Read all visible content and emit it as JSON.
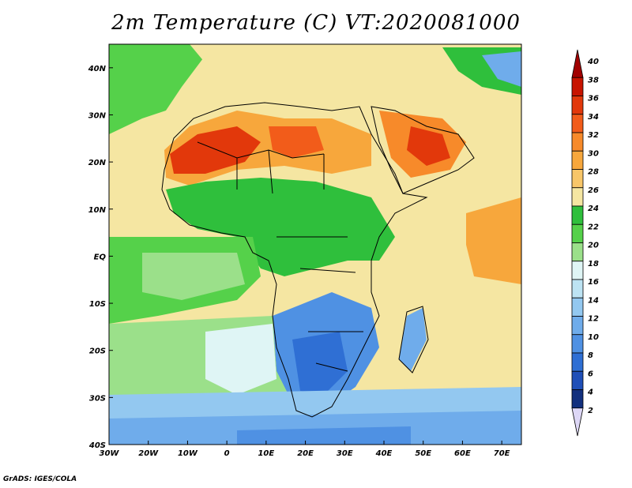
{
  "title": "2m Temperature (C) VT:2020081000",
  "footer": "GrADS: IGES/COLA",
  "map": {
    "lon_range": [
      -30,
      75
    ],
    "lat_range": [
      -40,
      45
    ],
    "lon_ticks": [
      "30W",
      "20W",
      "10W",
      "0",
      "10E",
      "20E",
      "30E",
      "40E",
      "50E",
      "60E",
      "70E"
    ],
    "lat_ticks": [
      "40N",
      "30N",
      "20N",
      "10N",
      "EQ",
      "10S",
      "20S",
      "30S",
      "40S"
    ]
  },
  "colorbar": {
    "labels": [
      "40",
      "38",
      "36",
      "34",
      "32",
      "30",
      "28",
      "26",
      "24",
      "22",
      "20",
      "18",
      "16",
      "14",
      "12",
      "10",
      "8",
      "6",
      "4",
      "2"
    ],
    "colors": [
      "#a10000",
      "#c81400",
      "#e2380b",
      "#f25c1a",
      "#f78a2a",
      "#f7a73c",
      "#f8c669",
      "#f5e6a2",
      "#2fbf3c",
      "#55d14a",
      "#9be08a",
      "#dff5f5",
      "#bde3f3",
      "#93c8f0",
      "#6faceb",
      "#4f91e3",
      "#2f6fd4",
      "#1f4fb8",
      "#12307e",
      "#ddd7f6"
    ]
  }
}
